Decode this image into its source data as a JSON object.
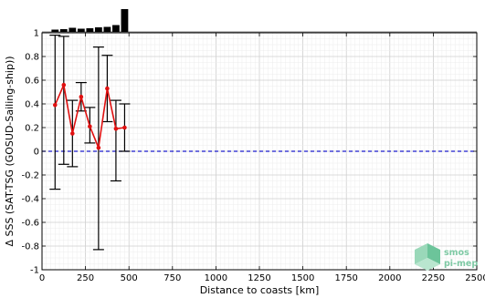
{
  "chart_data": {
    "type": "scatter",
    "title": "",
    "xlabel": "Distance to coasts [km]",
    "ylabel": "Δ SSS (SAT-TSG (GOSUD-Sailing-ship))",
    "xlim": [
      0,
      2500
    ],
    "ylim": [
      -1,
      1
    ],
    "x_ticks": [
      0,
      250,
      500,
      750,
      1000,
      1250,
      1500,
      1750,
      2000,
      2250,
      2500
    ],
    "y_ticks": [
      -1,
      -0.8,
      -0.6,
      -0.4,
      -0.2,
      0,
      0.2,
      0.4,
      0.6,
      0.8,
      1
    ],
    "grid": true,
    "reference_line": {
      "y": 0,
      "style": "dashed",
      "color": "#1a1acc"
    },
    "series": [
      {
        "color": "#e01010",
        "x": [
          75,
          125,
          175,
          225,
          275,
          325,
          375,
          425,
          475
        ],
        "y": [
          0.39,
          0.56,
          0.15,
          0.46,
          0.21,
          0.03,
          0.53,
          0.19,
          0.2
        ],
        "err_low": [
          -0.32,
          -0.11,
          -0.13,
          0.34,
          0.07,
          -0.83,
          0.25,
          -0.25,
          0.0
        ],
        "err_high": [
          0.98,
          0.97,
          0.43,
          0.58,
          0.37,
          0.88,
          0.81,
          0.43,
          0.4
        ]
      }
    ],
    "histogram": {
      "x": [
        75,
        125,
        175,
        225,
        275,
        325,
        375,
        425,
        475
      ],
      "relative_counts": [
        0.1,
        0.12,
        0.18,
        0.14,
        0.16,
        0.2,
        0.22,
        0.3,
        1.0
      ]
    }
  },
  "logo": {
    "line1": "smos",
    "line2": "pi-mep"
  },
  "colors": {
    "series": "#e01010",
    "errorbar": "#000000",
    "zero_line": "#1a1acc",
    "logo": "#7fcaa5"
  }
}
